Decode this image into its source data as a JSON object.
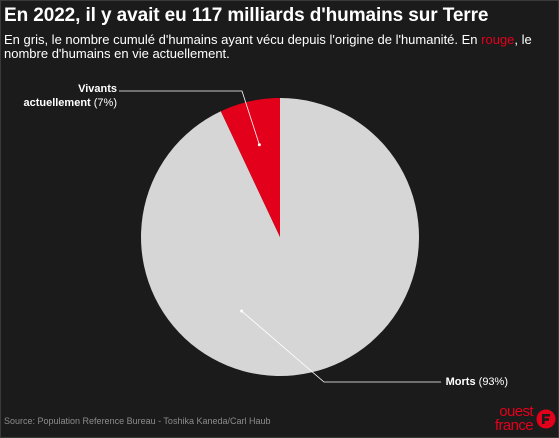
{
  "title": "En 2022, il y avait eu 117 milliards d'humains sur Terre",
  "subtitle": {
    "part1": "En gris, le nombre cumulé d'humains ayant vécu depuis l'origine de l'humanité. En ",
    "accent_word": "rouge",
    "part2": ", le nombre d'humains en vie actuellement."
  },
  "chart_data": {
    "type": "pie",
    "title": "En 2022, il y avait eu 117 milliards d'humains sur Terre",
    "slices": [
      {
        "label": "Vivants actuellement",
        "value": 7,
        "display": "(7%)",
        "color": "#e3001b"
      },
      {
        "label": "Morts",
        "value": 93,
        "display": "(93%)",
        "color": "#d6d6d6"
      }
    ],
    "legend": "none"
  },
  "labels": {
    "alive_line1": "Vivants",
    "alive_line2": "actuellement",
    "alive_pct": "(7%)",
    "dead": "Morts",
    "dead_pct": "(93%)"
  },
  "source": "Source: Population Reference Bureau - Toshika Kaneda/Carl Haub",
  "logo": {
    "line1": "ouest",
    "line2": "france",
    "color": "#e3001b"
  },
  "colors": {
    "background": "#1b1b1b",
    "accent": "#e3001b",
    "slice_dead": "#d6d6d6",
    "text": "#ffffff",
    "source_text": "#8c8c8c"
  }
}
